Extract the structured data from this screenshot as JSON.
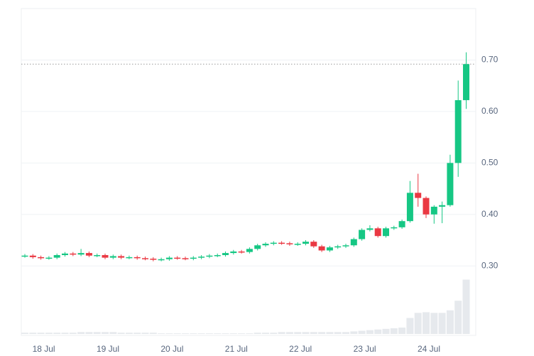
{
  "chart_data": {
    "type": "candlestick",
    "categories": [
      null,
      null,
      "18 Jul",
      null,
      null,
      null,
      null,
      null,
      null,
      null,
      "19 Jul",
      null,
      null,
      null,
      null,
      null,
      null,
      null,
      "20 Jul",
      null,
      null,
      null,
      null,
      null,
      null,
      null,
      "21 Jul",
      null,
      null,
      null,
      null,
      null,
      null,
      null,
      "22 Jul",
      null,
      null,
      null,
      null,
      null,
      null,
      null,
      "23 Jul",
      null,
      null,
      null,
      null,
      null,
      null,
      null,
      "24 Jul",
      null,
      null,
      null,
      null,
      null
    ],
    "open": [
      0.319,
      0.32,
      0.317,
      0.315,
      0.316,
      0.321,
      0.324,
      0.322,
      0.325,
      0.32,
      0.321,
      0.316,
      0.319,
      0.316,
      0.317,
      0.315,
      0.314,
      0.312,
      0.313,
      0.316,
      0.315,
      0.314,
      0.316,
      0.318,
      0.32,
      0.321,
      0.325,
      0.328,
      0.327,
      0.333,
      0.34,
      0.343,
      0.345,
      0.344,
      0.342,
      0.343,
      0.347,
      0.338,
      0.33,
      0.336,
      0.338,
      0.34,
      0.352,
      0.37,
      0.373,
      0.358,
      0.373,
      0.375,
      0.387,
      0.442,
      0.432,
      0.4,
      0.415,
      0.418,
      0.5,
      0.622
    ],
    "high": [
      0.323,
      0.323,
      0.32,
      0.319,
      0.324,
      0.327,
      0.327,
      0.333,
      0.328,
      0.324,
      0.324,
      0.322,
      0.322,
      0.32,
      0.32,
      0.318,
      0.317,
      0.316,
      0.319,
      0.319,
      0.318,
      0.319,
      0.321,
      0.323,
      0.324,
      0.328,
      0.331,
      0.331,
      0.336,
      0.343,
      0.346,
      0.348,
      0.348,
      0.347,
      0.346,
      0.35,
      0.35,
      0.341,
      0.339,
      0.341,
      0.343,
      0.355,
      0.373,
      0.379,
      0.376,
      0.376,
      0.378,
      0.39,
      0.465,
      0.479,
      0.435,
      0.418,
      0.425,
      0.516,
      0.66,
      0.715
    ],
    "low": [
      0.316,
      0.314,
      0.312,
      0.312,
      0.313,
      0.318,
      0.319,
      0.319,
      0.317,
      0.317,
      0.313,
      0.313,
      0.313,
      0.313,
      0.312,
      0.311,
      0.309,
      0.309,
      0.31,
      0.312,
      0.311,
      0.311,
      0.313,
      0.315,
      0.317,
      0.318,
      0.322,
      0.324,
      0.324,
      0.33,
      0.337,
      0.34,
      0.341,
      0.339,
      0.339,
      0.34,
      0.335,
      0.327,
      0.327,
      0.333,
      0.335,
      0.337,
      0.349,
      0.367,
      0.355,
      0.355,
      0.37,
      0.372,
      0.384,
      0.415,
      0.393,
      0.382,
      0.383,
      0.415,
      0.473,
      0.605
    ],
    "close": [
      0.32,
      0.317,
      0.315,
      0.316,
      0.321,
      0.324,
      0.322,
      0.325,
      0.32,
      0.321,
      0.316,
      0.319,
      0.316,
      0.317,
      0.315,
      0.314,
      0.312,
      0.313,
      0.316,
      0.315,
      0.314,
      0.316,
      0.318,
      0.32,
      0.321,
      0.325,
      0.328,
      0.327,
      0.333,
      0.34,
      0.343,
      0.345,
      0.344,
      0.342,
      0.343,
      0.347,
      0.338,
      0.33,
      0.336,
      0.338,
      0.34,
      0.352,
      0.37,
      0.373,
      0.358,
      0.373,
      0.375,
      0.387,
      0.442,
      0.432,
      0.4,
      0.415,
      0.418,
      0.5,
      0.622,
      0.692
    ],
    "volume": [
      2,
      2,
      2,
      2,
      2,
      2,
      2,
      3,
      3,
      3,
      3,
      3,
      2,
      2,
      2,
      2,
      2,
      1,
      1,
      1,
      1,
      1,
      1,
      1,
      1,
      1,
      1,
      1,
      1,
      2,
      2,
      2,
      3,
      3,
      3,
      3,
      3,
      3,
      3,
      3,
      3,
      4,
      5,
      6,
      7,
      8,
      9,
      10,
      25,
      33,
      34,
      33,
      33,
      37,
      52,
      85
    ],
    "volume_lim": [
      0,
      100
    ],
    "up_color": "#16c784",
    "down_color": "#ea3943",
    "volume_color": "#e6e9ed",
    "last_price": 0.692,
    "ylim": [
      0.165,
      0.8
    ],
    "yticks": [
      {
        "value": 0.3,
        "label": "0.30"
      },
      {
        "value": 0.4,
        "label": "0.40"
      },
      {
        "value": 0.5,
        "label": "0.50"
      },
      {
        "value": 0.6,
        "label": "0.60"
      },
      {
        "value": 0.7,
        "label": "0.70"
      }
    ],
    "grid": true
  }
}
